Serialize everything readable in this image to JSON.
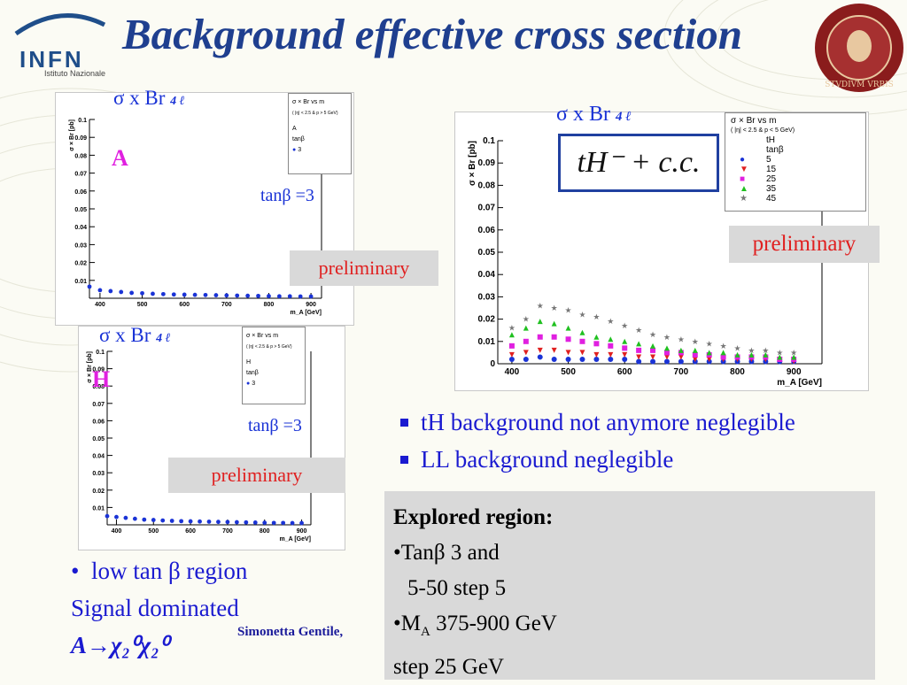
{
  "header": {
    "title": "Background effective cross section",
    "logo": "INFN",
    "logo_sub": "Istituto Nazionale",
    "seal_text": "STVDIVM VRBIS"
  },
  "plot_A": {
    "top_label": "σ x Br",
    "top_sub": "4 ℓ",
    "letter": "A",
    "tanb": "tanβ =3",
    "preliminary": "preliminary",
    "legend_title": "σ × Br  vs m",
    "legend_line2": "( |η| < 2.5  & p > 5 GeV)",
    "legend_entry1": "A",
    "legend_entry2": "tanβ",
    "legend_entry3": "3"
  },
  "plot_H": {
    "top_label": "σ x Br",
    "top_sub": "4 ℓ",
    "letter": "H",
    "tanb": "tanβ =3",
    "preliminary": "preliminary",
    "legend_title": "σ × Br  vs m",
    "legend_line2": "( |η| < 2.5  & p > 5 GeV)",
    "legend_entry1": "H",
    "legend_entry2": "tanβ",
    "legend_entry3": "3"
  },
  "plot_tH": {
    "top_label": "σ x Br",
    "top_sub": "4 ℓ",
    "formula": "tH⁻ + c.c.",
    "preliminary": "preliminary",
    "legend_title": "σ × Br  vs m",
    "legend_line2": "( |η| < 2.5  & p < 5 GeV)",
    "legend_entry1": "tH",
    "legend_entry2": "tanβ"
  },
  "bullets": [
    "tH background not anymore neglegible",
    "LL background neglegible"
  ],
  "low_tan": {
    "line1": "low tan β region",
    "line2": "Signal dominated",
    "line3": "A→χ₂⁰χ₂⁰"
  },
  "author": "Simonetta Gentile,",
  "explored": {
    "heading": "Explored region:",
    "line1": "•Tanβ 3 and",
    "line2": "5-50 step 5",
    "line3": "•M",
    "line3_sub": "A",
    "line3_rest": " 375-900 GeV",
    "line4": "step 25 GeV"
  },
  "colors": {
    "title": "#1f3f8f",
    "blue_text": "#1a1ad0",
    "preliminary": "#e02020"
  },
  "chart_data": [
    {
      "type": "scatter",
      "title": "",
      "xlabel": "m_A [GeV]",
      "ylabel": "σ × Br [pb]",
      "xlim": [
        375,
        925
      ],
      "ylim": [
        0,
        0.1
      ],
      "x_ticks": [
        400,
        500,
        600,
        700,
        800,
        900
      ],
      "y_ticks": [
        0.01,
        0.02,
        0.03,
        0.04,
        0.05,
        0.06,
        0.07,
        0.08,
        0.09,
        0.1
      ],
      "series": [
        {
          "name": "3",
          "color": "#1a33d6",
          "x": [
            375,
            400,
            425,
            450,
            475,
            500,
            525,
            550,
            575,
            600,
            625,
            650,
            675,
            700,
            725,
            750,
            775,
            800,
            825,
            850,
            875,
            900
          ],
          "y": [
            0.0065,
            0.0045,
            0.004,
            0.0035,
            0.003,
            0.0028,
            0.0025,
            0.0023,
            0.0021,
            0.002,
            0.0019,
            0.0018,
            0.0017,
            0.0016,
            0.0015,
            0.0014,
            0.0013,
            0.0012,
            0.0011,
            0.0011,
            0.001,
            0.001
          ]
        }
      ]
    },
    {
      "type": "scatter",
      "title": "",
      "xlabel": "m_A [GeV]",
      "ylabel": "σ × Br [pb]",
      "xlim": [
        375,
        925
      ],
      "ylim": [
        0,
        0.1
      ],
      "x_ticks": [
        400,
        500,
        600,
        700,
        800,
        900
      ],
      "y_ticks": [
        0.01,
        0.02,
        0.03,
        0.04,
        0.05,
        0.06,
        0.07,
        0.08,
        0.09,
        0.1
      ],
      "series": [
        {
          "name": "3",
          "color": "#1a33d6",
          "x": [
            375,
            400,
            425,
            450,
            475,
            500,
            525,
            550,
            575,
            600,
            625,
            650,
            675,
            700,
            725,
            750,
            775,
            800,
            825,
            850,
            875,
            900
          ],
          "y": [
            0.005,
            0.0045,
            0.004,
            0.0035,
            0.003,
            0.0028,
            0.0025,
            0.0023,
            0.0021,
            0.002,
            0.0019,
            0.0018,
            0.0017,
            0.0016,
            0.0015,
            0.0014,
            0.0013,
            0.0012,
            0.0011,
            0.0011,
            0.001,
            0.001
          ]
        }
      ]
    },
    {
      "type": "scatter",
      "title": "",
      "xlabel": "m_A [GeV]",
      "ylabel": "σ × Br [pb]",
      "xlim": [
        375,
        950
      ],
      "ylim": [
        0,
        0.1
      ],
      "x_ticks": [
        400,
        500,
        600,
        700,
        800,
        900
      ],
      "y_ticks": [
        0,
        0.01,
        0.02,
        0.03,
        0.04,
        0.05,
        0.06,
        0.07,
        0.08,
        0.09,
        0.1
      ],
      "series": [
        {
          "name": "5",
          "color": "#1a33d6",
          "marker": "circle",
          "x": [
            400,
            425,
            450,
            475,
            500,
            525,
            550,
            575,
            600,
            625,
            650,
            675,
            700,
            725,
            750,
            775,
            800,
            825,
            850,
            875,
            900
          ],
          "y": [
            0.002,
            0.002,
            0.003,
            0.002,
            0.002,
            0.002,
            0.002,
            0.002,
            0.002,
            0.001,
            0.001,
            0.001,
            0.001,
            0.001,
            0.001,
            0.001,
            0.001,
            0.001,
            0.001,
            0.001,
            0.001
          ]
        },
        {
          "name": "15",
          "color": "#e02020",
          "marker": "triangle-down",
          "x": [
            400,
            425,
            450,
            475,
            500,
            525,
            550,
            575,
            600,
            625,
            650,
            675,
            700,
            725,
            750,
            775,
            800,
            825,
            850,
            875,
            900
          ],
          "y": [
            0.004,
            0.005,
            0.006,
            0.006,
            0.005,
            0.005,
            0.004,
            0.004,
            0.004,
            0.003,
            0.003,
            0.003,
            0.003,
            0.002,
            0.002,
            0.002,
            0.002,
            0.002,
            0.002,
            0.002,
            0.001
          ]
        },
        {
          "name": "25",
          "color": "#e020e0",
          "marker": "square",
          "x": [
            400,
            425,
            450,
            475,
            500,
            525,
            550,
            575,
            600,
            625,
            650,
            675,
            700,
            725,
            750,
            775,
            800,
            825,
            850,
            875,
            900
          ],
          "y": [
            0.008,
            0.01,
            0.012,
            0.012,
            0.011,
            0.01,
            0.009,
            0.008,
            0.007,
            0.006,
            0.006,
            0.005,
            0.005,
            0.004,
            0.004,
            0.003,
            0.003,
            0.003,
            0.003,
            0.002,
            0.002
          ]
        },
        {
          "name": "35",
          "color": "#20c020",
          "marker": "triangle-up",
          "x": [
            400,
            425,
            450,
            475,
            500,
            525,
            550,
            575,
            600,
            625,
            650,
            675,
            700,
            725,
            750,
            775,
            800,
            825,
            850,
            875,
            900
          ],
          "y": [
            0.013,
            0.016,
            0.019,
            0.018,
            0.016,
            0.014,
            0.012,
            0.011,
            0.01,
            0.009,
            0.008,
            0.007,
            0.006,
            0.006,
            0.005,
            0.005,
            0.004,
            0.004,
            0.004,
            0.003,
            0.003
          ]
        },
        {
          "name": "45",
          "color": "#777777",
          "marker": "star",
          "x": [
            400,
            425,
            450,
            475,
            500,
            525,
            550,
            575,
            600,
            625,
            650,
            675,
            700,
            725,
            750,
            775,
            800,
            825,
            850,
            875,
            900
          ],
          "y": [
            0.016,
            0.02,
            0.026,
            0.025,
            0.024,
            0.022,
            0.021,
            0.019,
            0.017,
            0.015,
            0.013,
            0.012,
            0.011,
            0.01,
            0.009,
            0.008,
            0.007,
            0.006,
            0.006,
            0.005,
            0.005
          ]
        }
      ]
    }
  ]
}
